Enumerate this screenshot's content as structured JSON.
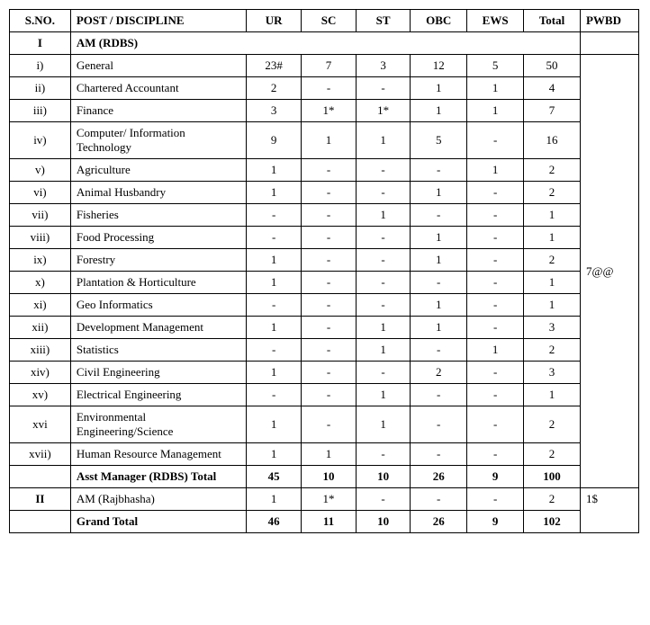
{
  "headers": {
    "sno": "S.NO.",
    "post": "POST / DISCIPLINE",
    "ur": "UR",
    "sc": "SC",
    "st": "ST",
    "obc": "OBC",
    "ews": "EWS",
    "total": "Total",
    "pwbd": "PWBD"
  },
  "section1": {
    "sno": "I",
    "title": "AM (RDBS)",
    "pwbd": "7@@",
    "rows": [
      {
        "sno": "i)",
        "post": "General",
        "ur": "23#",
        "sc": "7",
        "st": "3",
        "obc": "12",
        "ews": "5",
        "total": "50"
      },
      {
        "sno": "ii)",
        "post": "Chartered Accountant",
        "ur": "2",
        "sc": "-",
        "st": "-",
        "obc": "1",
        "ews": "1",
        "total": "4"
      },
      {
        "sno": "iii)",
        "post": "Finance",
        "ur": "3",
        "sc": "1*",
        "st": "1*",
        "obc": "1",
        "ews": "1",
        "total": "7"
      },
      {
        "sno": "iv)",
        "post": "Computer/ Information Technology",
        "ur": "9",
        "sc": "1",
        "st": "1",
        "obc": "5",
        "ews": "-",
        "total": "16"
      },
      {
        "sno": "v)",
        "post": "Agriculture",
        "ur": "1",
        "sc": "-",
        "st": "-",
        "obc": "-",
        "ews": "1",
        "total": "2"
      },
      {
        "sno": "vi)",
        "post": "Animal Husbandry",
        "ur": "1",
        "sc": "-",
        "st": "-",
        "obc": "1",
        "ews": "-",
        "total": "2"
      },
      {
        "sno": "vii)",
        "post": "Fisheries",
        "ur": "-",
        "sc": "-",
        "st": "1",
        "obc": "-",
        "ews": "-",
        "total": "1"
      },
      {
        "sno": "viii)",
        "post": "Food Processing",
        "ur": "-",
        "sc": "-",
        "st": "-",
        "obc": "1",
        "ews": "-",
        "total": "1"
      },
      {
        "sno": "ix)",
        "post": "Forestry",
        "ur": "1",
        "sc": "-",
        "st": "-",
        "obc": "1",
        "ews": "-",
        "total": "2"
      },
      {
        "sno": "x)",
        "post": "Plantation & Horticulture",
        "ur": "1",
        "sc": "-",
        "st": "-",
        "obc": "-",
        "ews": "-",
        "total": "1"
      },
      {
        "sno": "xi)",
        "post": "Geo Informatics",
        "ur": "-",
        "sc": "-",
        "st": "-",
        "obc": "1",
        "ews": "-",
        "total": "1"
      },
      {
        "sno": "xii)",
        "post": "Development Management",
        "ur": "1",
        "sc": "-",
        "st": "1",
        "obc": "1",
        "ews": "-",
        "total": "3"
      },
      {
        "sno": "xiii)",
        "post": "Statistics",
        "ur": "-",
        "sc": "-",
        "st": "1",
        "obc": "-",
        "ews": "1",
        "total": "2"
      },
      {
        "sno": "xiv)",
        "post": "Civil Engineering",
        "ur": "1",
        "sc": "-",
        "st": "-",
        "obc": "2",
        "ews": "-",
        "total": "3"
      },
      {
        "sno": "xv)",
        "post": "Electrical Engineering",
        "ur": "-",
        "sc": "-",
        "st": "1",
        "obc": "-",
        "ews": "-",
        "total": "1"
      },
      {
        "sno": "xvi",
        "post": "Environmental Engineering/Science",
        "ur": "1",
        "sc": "-",
        "st": "1",
        "obc": "-",
        "ews": "-",
        "total": "2"
      },
      {
        "sno": "xvii)",
        "post": "Human Resource Management",
        "ur": "1",
        "sc": "1",
        "st": "-",
        "obc": "-",
        "ews": "-",
        "total": "2"
      }
    ],
    "subtotal": {
      "label": "Asst Manager (RDBS) Total",
      "ur": "45",
      "sc": "10",
      "st": "10",
      "obc": "26",
      "ews": "9",
      "total": "100"
    }
  },
  "section2": {
    "sno": "II",
    "row": {
      "post": "AM (Rajbhasha)",
      "ur": "1",
      "sc": "1*",
      "st": "-",
      "obc": "-",
      "ews": "-",
      "total": "2"
    },
    "pwbd": "1$"
  },
  "grand": {
    "label": "Grand Total",
    "ur": "46",
    "sc": "11",
    "st": "10",
    "obc": "26",
    "ews": "9",
    "total": "102"
  }
}
